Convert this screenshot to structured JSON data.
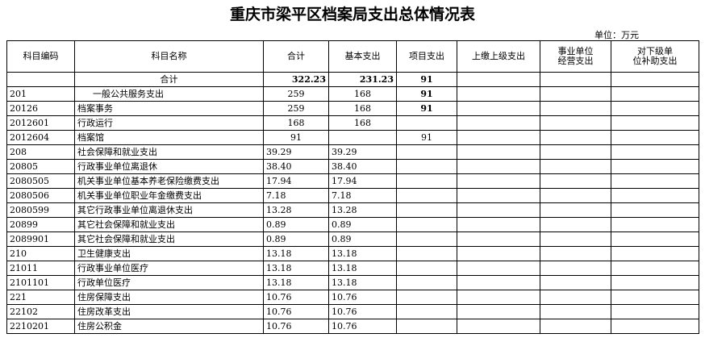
{
  "header": {
    "title": "重庆市梁平区档案局支出总体情况表",
    "unit": "单位：万元"
  },
  "table": {
    "columns": [
      [
        "科目编码"
      ],
      [
        "科目名称"
      ],
      [
        "合计"
      ],
      [
        "基本支出"
      ],
      [
        "项目支出"
      ],
      [
        "上缴上级支出"
      ],
      [
        "事业单位",
        "经营支出"
      ],
      [
        "对下级单",
        "位补助支出"
      ]
    ],
    "rows": [
      {
        "name": "合计",
        "total": "322.23",
        "basic": "231.23",
        "project": "91"
      },
      {
        "code": "201",
        "name": "一般公共服务支出",
        "total": "259",
        "basic": "168",
        "project": "91"
      },
      {
        "code": "20126",
        "name": "档案事务",
        "total": "259",
        "basic": "168",
        "project": "91"
      },
      {
        "code": "2012601",
        "name": "行政运行",
        "total": "168",
        "basic": "168"
      },
      {
        "code": "2012604",
        "name": "档案馆",
        "total": "91",
        "project": "91"
      },
      {
        "code": "208",
        "name": "社会保障和就业支出",
        "total": "39.29",
        "basic": "39.29"
      },
      {
        "code": "20805",
        "name": "行政事业单位离退休",
        "total": "38.40",
        "basic": "38.40"
      },
      {
        "code": "2080505",
        "name": "机关事业单位基本养老保险缴费支出",
        "total": "17.94",
        "basic": "17.94"
      },
      {
        "code": "2080506",
        "name": "机关事业单位职业年金缴费支出",
        "total": "7.18",
        "basic": "7.18"
      },
      {
        "code": "2080599",
        "name": "其它行政事业单位离退休支出",
        "total": "13.28",
        "basic": "13.28"
      },
      {
        "code": "20899",
        "name": "其它社会保障和就业支出",
        "total": "0.89",
        "basic": "0.89"
      },
      {
        "code": "2089901",
        "name": "其它社会保障和就业支出",
        "total": "0.89",
        "basic": "0.89"
      },
      {
        "code": "210",
        "name": "卫生健康支出",
        "total": "13.18",
        "basic": "13.18"
      },
      {
        "code": "21011",
        "name": "行政事业单位医疗",
        "total": "13.18",
        "basic": "13.18"
      },
      {
        "code": "2101101",
        "name": "行政单位医疗",
        "total": "13.18",
        "basic": "13.18"
      },
      {
        "code": "221",
        "name": "住房保障支出",
        "total": "10.76",
        "basic": "10.76"
      },
      {
        "code": "22102",
        "name": "住房改革支出",
        "total": "10.76",
        "basic": "10.76"
      },
      {
        "code": "2210201",
        "name": "住房公积金",
        "total": "10.76",
        "basic": "10.76"
      }
    ]
  }
}
